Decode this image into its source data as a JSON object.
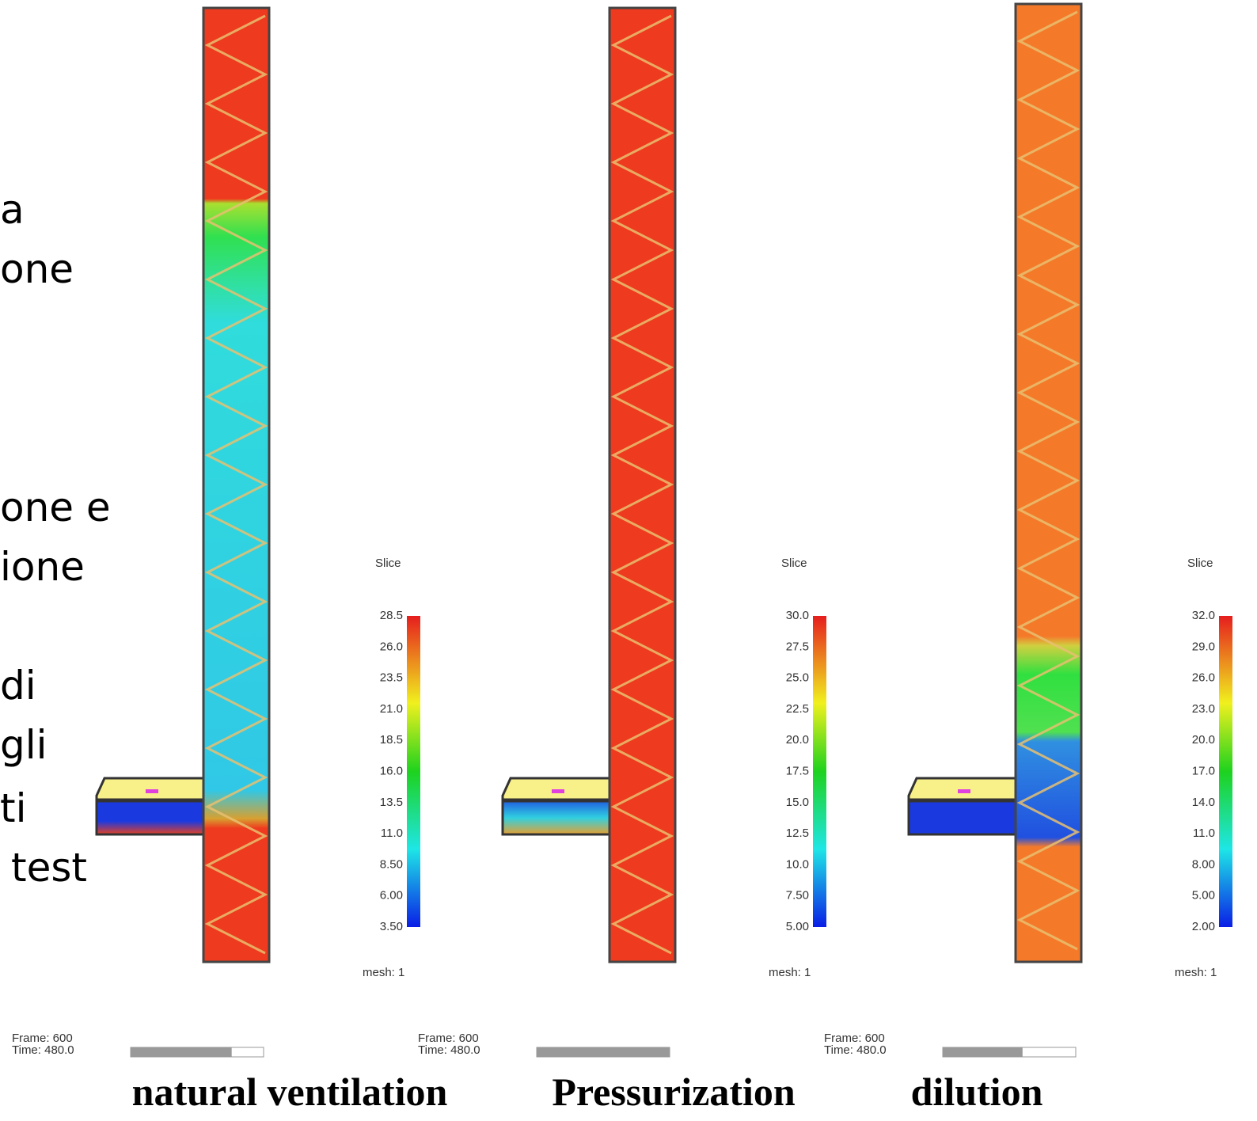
{
  "left_text": [
    "a",
    "one",
    "one e",
    "ione",
    "di",
    "gli",
    "ti",
    "test"
  ],
  "panels": [
    {
      "legend_title": "Slice",
      "scale": [
        "28.5",
        "26.0",
        "23.5",
        "21.0",
        "18.5",
        "16.0",
        "13.5",
        "11.0",
        "8.50",
        "6.00",
        "3.50"
      ],
      "mesh": "mesh: 1",
      "frame": "Frame: 600",
      "time": "Time: 480.0",
      "caption": "natural ventilation"
    },
    {
      "legend_title": "Slice",
      "scale": [
        "30.0",
        "27.5",
        "25.0",
        "22.5",
        "20.0",
        "17.5",
        "15.0",
        "12.5",
        "10.0",
        "7.50",
        "5.00"
      ],
      "mesh": "mesh: 1",
      "frame": "Frame: 600",
      "time": "Time: 480.0",
      "caption": "Pressurization"
    },
    {
      "legend_title": "Slice",
      "scale": [
        "32.0",
        "29.0",
        "26.0",
        "23.0",
        "20.0",
        "17.0",
        "14.0",
        "11.0",
        "8.00",
        "5.00",
        "2.00"
      ],
      "mesh": "mesh: 1",
      "frame": "Frame: 600",
      "time": "Time: 480.0",
      "caption": "dilution"
    }
  ]
}
